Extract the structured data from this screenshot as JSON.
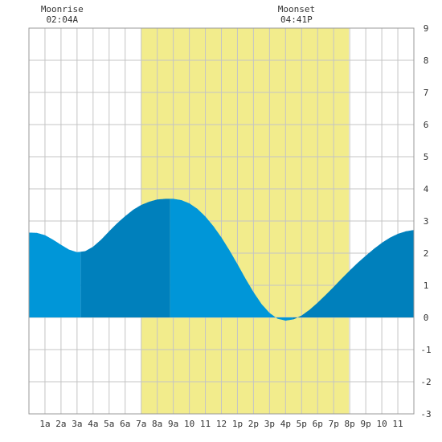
{
  "moon": {
    "rise": {
      "label": "Moonrise",
      "time": "02:04A",
      "hour": 2.07
    },
    "set": {
      "label": "Moonset",
      "time": "04:41P",
      "hour": 16.68
    }
  },
  "chart_data": {
    "type": "area",
    "title": "",
    "xlabel": "",
    "ylabel": "",
    "xlim": [
      0,
      24
    ],
    "ylim": [
      -3,
      9
    ],
    "grid": true,
    "x_ticks": [
      {
        "hour": 1,
        "label": "1a"
      },
      {
        "hour": 2,
        "label": "2a"
      },
      {
        "hour": 3,
        "label": "3a"
      },
      {
        "hour": 4,
        "label": "4a"
      },
      {
        "hour": 5,
        "label": "5a"
      },
      {
        "hour": 6,
        "label": "6a"
      },
      {
        "hour": 7,
        "label": "7a"
      },
      {
        "hour": 8,
        "label": "8a"
      },
      {
        "hour": 9,
        "label": "9a"
      },
      {
        "hour": 10,
        "label": "10"
      },
      {
        "hour": 11,
        "label": "11"
      },
      {
        "hour": 12,
        "label": "12"
      },
      {
        "hour": 13,
        "label": "1p"
      },
      {
        "hour": 14,
        "label": "2p"
      },
      {
        "hour": 15,
        "label": "3p"
      },
      {
        "hour": 16,
        "label": "4p"
      },
      {
        "hour": 17,
        "label": "5p"
      },
      {
        "hour": 18,
        "label": "6p"
      },
      {
        "hour": 19,
        "label": "7p"
      },
      {
        "hour": 20,
        "label": "8p"
      },
      {
        "hour": 21,
        "label": "9p"
      },
      {
        "hour": 22,
        "label": "10"
      },
      {
        "hour": 23,
        "label": "11"
      }
    ],
    "y_ticks": [
      {
        "value": 9,
        "label": "9"
      },
      {
        "value": 8,
        "label": "8"
      },
      {
        "value": 7,
        "label": "7"
      },
      {
        "value": 6,
        "label": "6"
      },
      {
        "value": 5,
        "label": "5"
      },
      {
        "value": 4,
        "label": "4"
      },
      {
        "value": 3,
        "label": "3"
      },
      {
        "value": 2,
        "label": "2"
      },
      {
        "value": 1,
        "label": "1"
      },
      {
        "value": 0,
        "label": "0"
      },
      {
        "value": -1,
        "label": "-1"
      },
      {
        "value": -2,
        "label": "-2"
      },
      {
        "value": -3,
        "label": "-3"
      }
    ],
    "daylight": {
      "start": 7.0,
      "end": 19.95,
      "color": "#f2ec8c"
    },
    "tide_curve": {
      "hours": [
        0,
        0.5,
        1,
        1.5,
        2,
        2.5,
        3,
        3.5,
        4,
        4.5,
        5,
        5.5,
        6,
        6.5,
        7,
        7.5,
        8,
        8.5,
        9,
        9.5,
        10,
        10.5,
        11,
        11.5,
        12,
        12.5,
        13,
        13.5,
        14,
        14.5,
        15,
        15.5,
        16,
        16.5,
        17,
        17.5,
        18,
        18.5,
        19,
        19.5,
        20,
        20.5,
        21,
        21.5,
        22,
        22.5,
        23,
        23.5,
        24
      ],
      "heights": [
        2.64,
        2.63,
        2.56,
        2.42,
        2.26,
        2.11,
        2.03,
        2.06,
        2.2,
        2.42,
        2.68,
        2.93,
        3.15,
        3.35,
        3.5,
        3.6,
        3.67,
        3.69,
        3.69,
        3.65,
        3.55,
        3.38,
        3.14,
        2.84,
        2.49,
        2.09,
        1.66,
        1.21,
        0.79,
        0.42,
        0.14,
        -0.04,
        -0.1,
        -0.06,
        0.06,
        0.24,
        0.46,
        0.7,
        0.95,
        1.21,
        1.46,
        1.7,
        1.92,
        2.13,
        2.32,
        2.48,
        2.6,
        2.68,
        2.72
      ]
    },
    "tide_colors": {
      "normal": "#0096d8",
      "dark": "#0080bc"
    },
    "tide_segments": [
      {
        "start": 0.0,
        "end": 3.22,
        "shade": "normal"
      },
      {
        "start": 3.22,
        "end": 8.8,
        "shade": "dark"
      },
      {
        "start": 8.8,
        "end": 16.45,
        "shade": "normal"
      },
      {
        "start": 16.45,
        "end": 24.0,
        "shade": "dark"
      }
    ]
  }
}
